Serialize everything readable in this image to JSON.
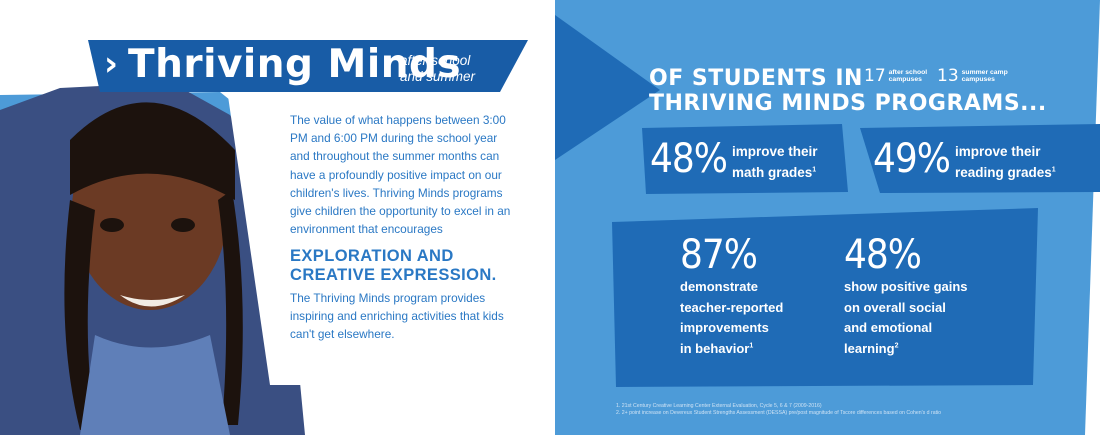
{
  "title": {
    "arrow_glyph": "›",
    "main": "Thriving Minds",
    "sub_line1": "after-school",
    "sub_line2": "and summer"
  },
  "intro": {
    "paragraph1": "The value of what happens between 3:00 PM and 6:00 PM during the school year and throughout the summer months can have a profoundly positive impact on our children's lives. Thriving Minds programs give children the opportunity to excel in an environment that encourages",
    "highlight_line1": "EXPLORATION AND",
    "highlight_line2": "CREATIVE EXPRESSION.",
    "paragraph2": "The Thriving Minds program provides inspiring and enriching activities that kids can't get elsewhere."
  },
  "stats_header": {
    "line1": "OF STUDENTS IN",
    "line2": "THRIVING MINDS PROGRAMS..."
  },
  "campuses": [
    {
      "number": "17",
      "label_line1": "after school",
      "label_line2": "campuses"
    },
    {
      "number": "13",
      "label_line1": "summer camp",
      "label_line2": "campuses"
    }
  ],
  "stats": [
    {
      "value": "48%",
      "label_line1": "improve their",
      "label_line2": "math grades",
      "footnote": "1"
    },
    {
      "value": "49%",
      "label_line1": "improve their",
      "label_line2": "reading grades",
      "footnote": "1"
    },
    {
      "value": "87%",
      "label_line1": "demonstrate",
      "label_line2": "teacher-reported",
      "label_line3": "improvements",
      "label_line4": "in behavior",
      "footnote": "1"
    },
    {
      "value": "48%",
      "label_line1": "show positive gains",
      "label_line2": "on overall social",
      "label_line3": "and emotional",
      "label_line4": "learning",
      "footnote": "2"
    }
  ],
  "footnotes": [
    "1. 21st Century Creative Learning Center External Evaluation, Cycle 5, 6 & 7 (2009-2016)",
    "2. 2+ point increase on Devereux Student Strengths Assessment (DESSA) pre/post magnitude of Tscore differences based on Cohen's d ratio"
  ],
  "colors": {
    "light_blue": "#4d9bd8",
    "mid_blue": "#1f6bb6",
    "dark_blue": "#185ca6",
    "white": "#ffffff",
    "text_blue": "#2a78c4"
  }
}
